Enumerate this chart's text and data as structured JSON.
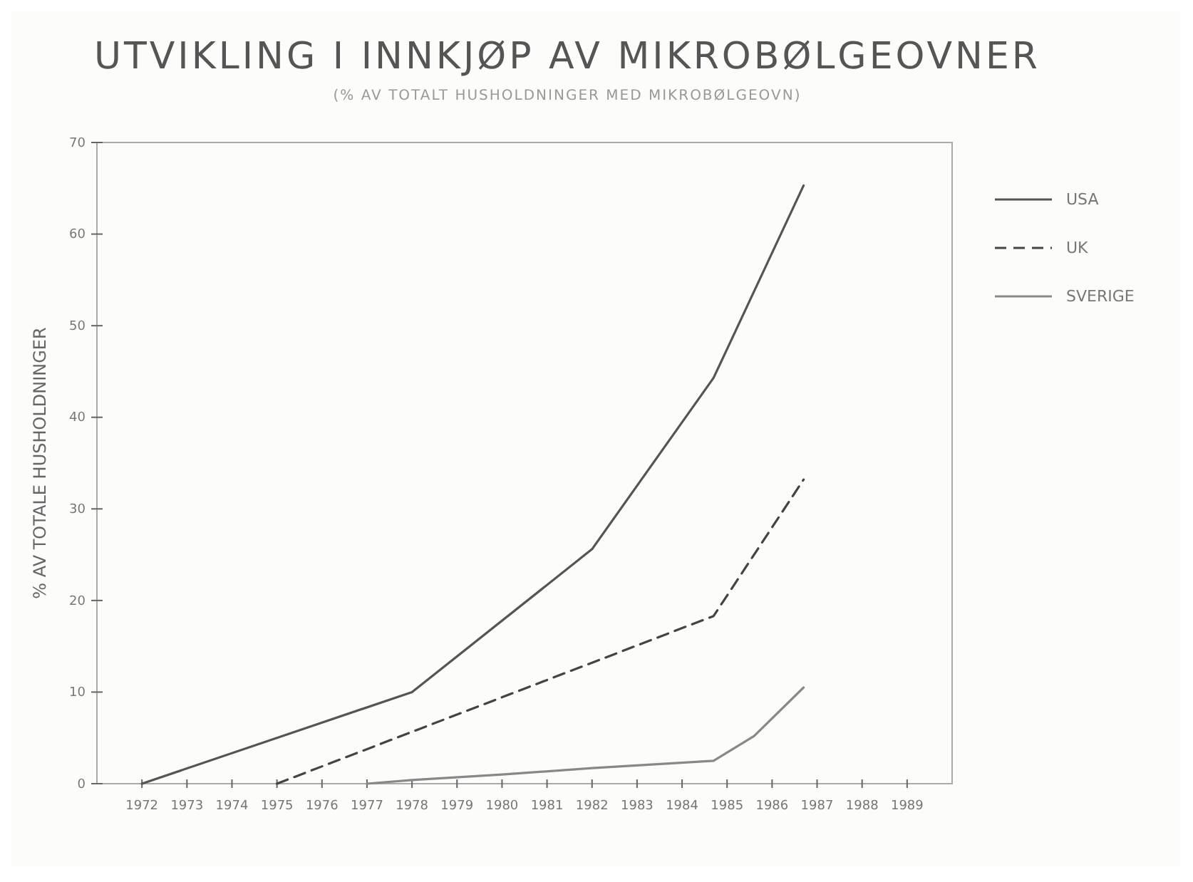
{
  "chart_data": {
    "type": "line",
    "title": "UTVIKLING I INNKJØP AV MIKROBØLGEOVNER",
    "subtitle": "(% AV TOTALT HUSHOLDNINGER MED MIKROBØLGEOVN)",
    "ylabel": "% AV TOTALE HUSHOLDNINGER",
    "xlim": [
      1971,
      1990
    ],
    "xticks": [
      1972,
      1973,
      1974,
      1975,
      1976,
      1977,
      1978,
      1979,
      1980,
      1981,
      1982,
      1983,
      1984,
      1985,
      1986,
      1987,
      1988,
      1989
    ],
    "ylim": [
      0,
      70
    ],
    "yticks": [
      0,
      10,
      20,
      30,
      40,
      50,
      60,
      70
    ],
    "grid": false,
    "legend": "right",
    "series": [
      {
        "name": "USA",
        "color": "#555555",
        "line_style": "solid",
        "x": [
          1972,
          1978,
          1982,
          1984.7,
          1986.7
        ],
        "values": [
          0,
          10,
          25.6,
          44.3,
          65.3
        ]
      },
      {
        "name": "UK",
        "color": "#444444",
        "line_style": "dashed",
        "x": [
          1975,
          1984.7,
          1986.7
        ],
        "values": [
          0,
          18.3,
          33.2
        ]
      },
      {
        "name": "SVERIGE",
        "color": "#888888",
        "line_style": "solid",
        "x": [
          1977,
          1978,
          1980,
          1982,
          1984.7,
          1985.6,
          1986.7
        ],
        "values": [
          0,
          0.4,
          1,
          1.7,
          2.5,
          5.2,
          10.5
        ]
      }
    ]
  }
}
